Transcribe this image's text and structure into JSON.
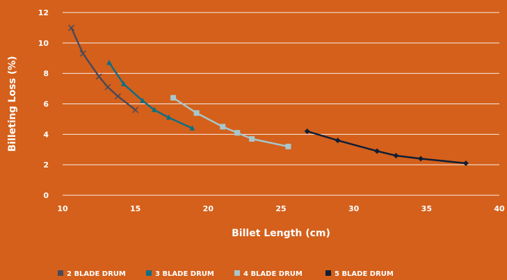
{
  "chart_data": {
    "type": "line",
    "title": "",
    "xlabel": "Billet Length (cm)",
    "ylabel": "Billeting Loss (%)",
    "xlim": [
      10,
      40
    ],
    "ylim": [
      0,
      12
    ],
    "xticks": [
      10,
      15,
      20,
      25,
      30,
      35,
      40
    ],
    "yticks": [
      0,
      2,
      4,
      6,
      8,
      10,
      12
    ],
    "grid": "horizontal",
    "legend_position": "bottom",
    "series": [
      {
        "name": "2 BLADE DRUM",
        "marker": "x",
        "color": "#4a4a5a",
        "points": [
          [
            10.6,
            11.0
          ],
          [
            11.4,
            9.3
          ],
          [
            12.5,
            7.8
          ],
          [
            13.1,
            7.1
          ],
          [
            13.8,
            6.5
          ],
          [
            15.0,
            5.6
          ]
        ]
      },
      {
        "name": "3 BLADE DRUM",
        "marker": "triangle",
        "color": "#0f6e84",
        "points": [
          [
            13.2,
            8.7
          ],
          [
            14.2,
            7.3
          ],
          [
            15.5,
            6.2
          ],
          [
            16.3,
            5.6
          ],
          [
            17.3,
            5.1
          ],
          [
            18.9,
            4.4
          ]
        ]
      },
      {
        "name": "4 BLADE DRUM",
        "marker": "square",
        "color": "#a7c7cc",
        "points": [
          [
            17.6,
            6.4
          ],
          [
            19.2,
            5.4
          ],
          [
            21.0,
            4.5
          ],
          [
            22.0,
            4.1
          ],
          [
            23.0,
            3.7
          ],
          [
            25.5,
            3.2
          ]
        ]
      },
      {
        "name": "5 BLADE DRUM",
        "marker": "diamond",
        "color": "#0f1e36",
        "points": [
          [
            26.8,
            4.2
          ],
          [
            28.9,
            3.6
          ],
          [
            31.6,
            2.9
          ],
          [
            32.9,
            2.6
          ],
          [
            34.6,
            2.4
          ],
          [
            37.7,
            2.1
          ]
        ]
      }
    ]
  }
}
